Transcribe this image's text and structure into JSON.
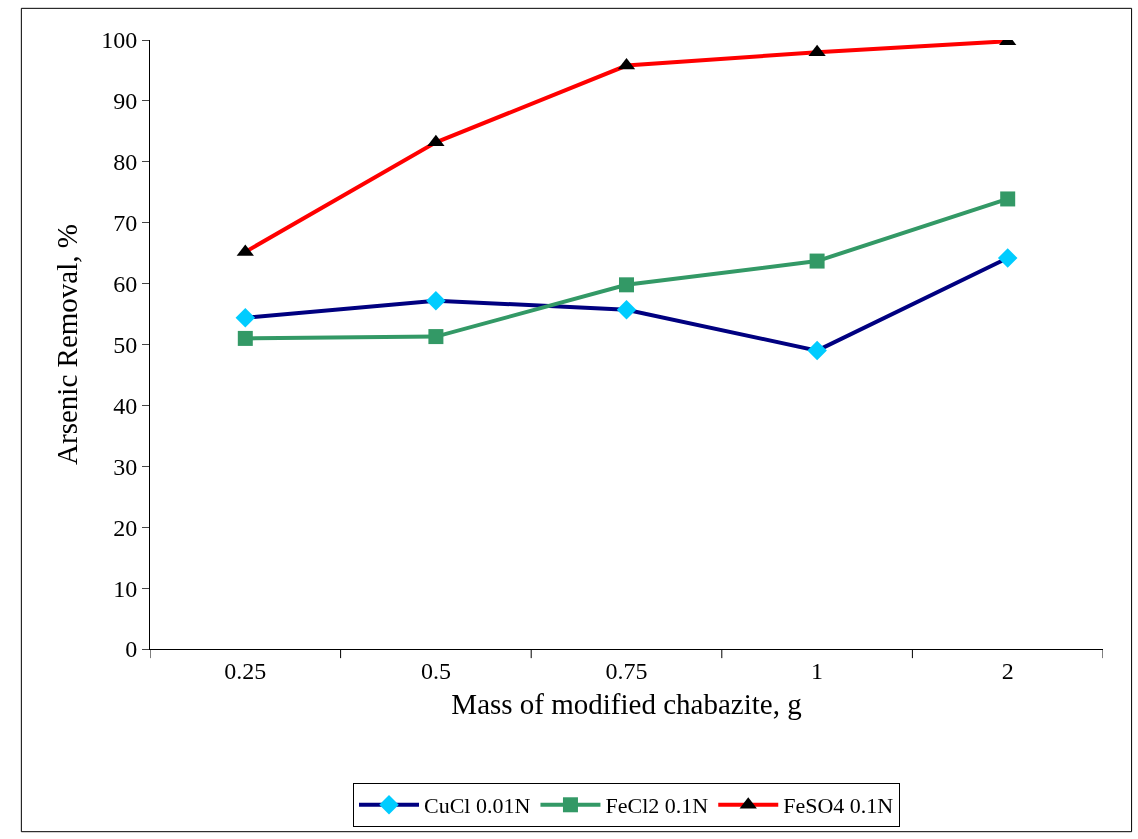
{
  "chart_data": {
    "type": "line",
    "xlabel": "Mass of modified chabazite, g",
    "ylabel": "Arsenic Removal, %",
    "categories": [
      "0.25",
      "0.5",
      "0.75",
      "1",
      "2"
    ],
    "series": [
      {
        "name": "CuCl 0.01N",
        "color": "#000080",
        "colors": [
          "#00ccff",
          "#00ccff",
          "#00ccff",
          "#00ccff",
          "#00ccff"
        ],
        "marker": "diamond",
        "values": [
          54.4,
          57.2,
          55.7,
          49.0,
          64.2
        ]
      },
      {
        "name": "FeCl2 0.1N",
        "color": "#339966",
        "colors": [
          "#339966",
          "#339966",
          "#339966",
          "#339966",
          "#339966"
        ],
        "marker": "square",
        "values": [
          51.0,
          51.3,
          59.8,
          63.7,
          73.9
        ]
      },
      {
        "name": "FeSO4 0.1N",
        "color": "#ff0000",
        "colors": [
          "#000000",
          "#000000",
          "#000000",
          "#000000",
          "#000000"
        ],
        "marker": "triangle",
        "values": [
          65.2,
          83.2,
          95.8,
          98.0,
          99.8
        ]
      }
    ],
    "ylim": [
      0,
      100
    ],
    "yticks": [
      0,
      10,
      20,
      30,
      40,
      50,
      60,
      70,
      80,
      90,
      100
    ],
    "legend": "bottom",
    "line_style": "solid"
  }
}
